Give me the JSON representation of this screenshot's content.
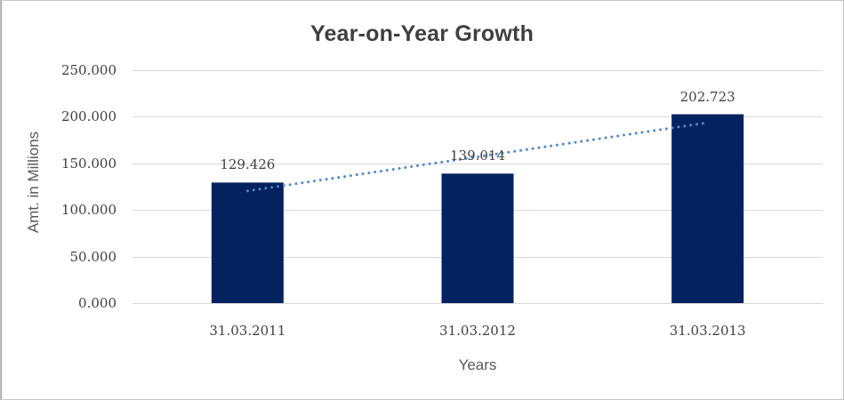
{
  "chart_data": {
    "type": "bar",
    "title": "Year-on-Year Growth",
    "xlabel": "Years",
    "ylabel": "Amt. in Millions",
    "categories": [
      "31.03.2011",
      "31.03.2012",
      "31.03.2013"
    ],
    "values": [
      129.426,
      139.014,
      202.723
    ],
    "data_labels": [
      "129.426",
      "139.014",
      "202.723"
    ],
    "ylim": [
      0,
      250
    ],
    "ytick_step": 50,
    "yticks": [
      {
        "value": 0,
        "label": "0.000"
      },
      {
        "value": 50,
        "label": "50.000"
      },
      {
        "value": 100,
        "label": "100.000"
      },
      {
        "value": 150,
        "label": "150.000"
      },
      {
        "value": 200,
        "label": "200.000"
      },
      {
        "value": 250,
        "label": "250.000"
      }
    ],
    "grid": true,
    "legend": "none",
    "trendline": {
      "type": "linear",
      "style": "dotted",
      "start_value": 120.4,
      "end_value": 193.7
    },
    "colors": {
      "bar": "#03225f",
      "trendline": "#5289c7",
      "gridline": "#d9d9d9",
      "text": "#404040",
      "title": "#3f3f3f"
    }
  }
}
